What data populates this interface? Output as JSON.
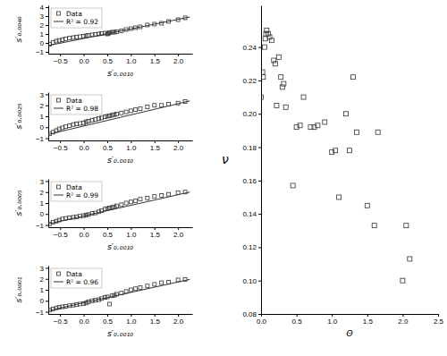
{
  "chart_data": [
    {
      "type": "scatter",
      "xlabel": "s′₀.₀₀₁₀",
      "ylabel": "s′₀.₀₀₄₀",
      "legend": "upper left",
      "grid": false,
      "xlim": [
        -0.75,
        2.3
      ],
      "ylim": [
        -1.2,
        4.2
      ],
      "xticks": [
        {
          "value": -0.5,
          "label": "−0.5"
        },
        {
          "value": 0,
          "label": "0.0"
        },
        0.5,
        {
          "value": 1.0,
          "label": "1.0"
        },
        1.5,
        {
          "value": 2.0,
          "label": "2.0"
        }
      ],
      "yticks": [
        {
          "value": -1,
          "label": "−1"
        },
        0,
        1,
        2,
        3,
        4
      ],
      "series": [
        {
          "name": "Data",
          "type": "scatter",
          "marker": "square",
          "color": "#333333",
          "x": [
            -0.72,
            -0.65,
            -0.58,
            -0.52,
            -0.45,
            -0.38,
            -0.3,
            -0.22,
            -0.15,
            -0.08,
            0.0,
            0.05,
            0.1,
            0.18,
            0.25,
            0.32,
            0.38,
            0.45,
            0.5,
            0.52,
            0.55,
            0.6,
            0.65,
            0.7,
            0.8,
            0.9,
            1.0,
            1.1,
            1.2,
            1.35,
            1.5,
            1.65,
            1.8,
            2.0,
            2.15
          ],
          "values": [
            -0.15,
            0.05,
            0.2,
            0.28,
            0.35,
            0.45,
            0.55,
            0.6,
            0.65,
            0.7,
            0.75,
            0.8,
            0.85,
            0.9,
            0.95,
            1.0,
            1.05,
            1.1,
            1.0,
            1.05,
            1.15,
            1.2,
            1.2,
            1.25,
            1.35,
            1.5,
            1.6,
            1.7,
            1.8,
            2.0,
            2.1,
            2.2,
            2.4,
            2.6,
            2.8
          ]
        },
        {
          "name": "R² = 0.92",
          "type": "line",
          "line_style": "solid",
          "color": "#333333",
          "x": [
            -0.75,
            2.25
          ],
          "values": [
            -0.3,
            2.9
          ]
        }
      ]
    },
    {
      "type": "scatter",
      "xlabel": "s′₀.₀₀₁₀",
      "ylabel": "s′₀.₀₀₂₅",
      "legend": "upper left",
      "grid": false,
      "xlim": [
        -0.75,
        2.3
      ],
      "ylim": [
        -1.2,
        3.2
      ],
      "xticks": [
        {
          "value": -0.5,
          "label": "−0.5"
        },
        {
          "value": 0,
          "label": "0.0"
        },
        0.5,
        {
          "value": 1.0,
          "label": "1.0"
        },
        1.5,
        {
          "value": 2.0,
          "label": "2.0"
        }
      ],
      "yticks": [
        {
          "value": -1,
          "label": "−1"
        },
        0,
        1,
        2,
        3
      ],
      "series": [
        {
          "name": "Data",
          "type": "scatter",
          "marker": "square",
          "color": "#333333",
          "x": [
            -0.72,
            -0.65,
            -0.58,
            -0.52,
            -0.45,
            -0.38,
            -0.3,
            -0.22,
            -0.15,
            -0.08,
            0.0,
            0.05,
            0.1,
            0.18,
            0.25,
            0.32,
            0.38,
            0.45,
            0.5,
            0.55,
            0.6,
            0.65,
            0.7,
            0.8,
            0.9,
            1.0,
            1.1,
            1.2,
            1.35,
            1.5,
            1.65,
            1.8,
            2.0,
            2.15
          ],
          "values": [
            -0.6,
            -0.45,
            -0.3,
            -0.15,
            -0.05,
            0.05,
            0.15,
            0.25,
            0.3,
            0.35,
            0.4,
            0.5,
            0.55,
            0.65,
            0.7,
            0.8,
            0.85,
            0.95,
            1.0,
            1.05,
            1.1,
            1.15,
            1.2,
            1.3,
            1.4,
            1.5,
            1.6,
            1.7,
            1.85,
            2.0,
            2.0,
            2.1,
            2.2,
            2.35
          ]
        },
        {
          "name": "R² = 0.98",
          "type": "line",
          "line_style": "solid",
          "color": "#333333",
          "x": [
            -0.75,
            2.25
          ],
          "values": [
            -0.65,
            2.4
          ]
        }
      ]
    },
    {
      "type": "scatter",
      "xlabel": "s′₀.₀₀₁₀",
      "ylabel": "s′₀.₀₀₀₅",
      "legend": "upper left",
      "grid": false,
      "xlim": [
        -0.75,
        2.3
      ],
      "ylim": [
        -1.2,
        3.2
      ],
      "xticks": [
        {
          "value": -0.5,
          "label": "−0.5"
        },
        {
          "value": 0,
          "label": "0.0"
        },
        0.5,
        {
          "value": 1.0,
          "label": "1.0"
        },
        1.5,
        {
          "value": 2.0,
          "label": "2.0"
        }
      ],
      "yticks": [
        {
          "value": -1,
          "label": "−1"
        },
        0,
        1,
        2,
        3
      ],
      "series": [
        {
          "name": "Data",
          "type": "scatter",
          "marker": "square",
          "color": "#333333",
          "x": [
            -0.72,
            -0.65,
            -0.58,
            -0.52,
            -0.45,
            -0.38,
            -0.3,
            -0.22,
            -0.15,
            -0.08,
            0.0,
            0.05,
            0.1,
            0.18,
            0.25,
            0.32,
            0.38,
            0.45,
            0.5,
            0.55,
            0.6,
            0.65,
            0.7,
            0.8,
            0.9,
            1.0,
            1.1,
            1.2,
            1.35,
            1.5,
            1.65,
            1.8,
            2.0,
            2.15
          ],
          "values": [
            -0.9,
            -0.75,
            -0.65,
            -0.55,
            -0.45,
            -0.4,
            -0.35,
            -0.3,
            -0.25,
            -0.2,
            -0.15,
            -0.1,
            -0.05,
            0.05,
            0.1,
            0.2,
            0.3,
            0.45,
            0.5,
            0.55,
            0.6,
            0.65,
            0.75,
            0.85,
            1.0,
            1.1,
            1.2,
            1.35,
            1.45,
            1.6,
            1.7,
            1.8,
            1.95,
            2.0
          ]
        },
        {
          "name": "R² = 0.99",
          "type": "line",
          "line_style": "solid",
          "color": "#333333",
          "x": [
            -0.75,
            2.25
          ],
          "values": [
            -0.9,
            2.0
          ]
        }
      ]
    },
    {
      "type": "scatter",
      "xlabel": "s′₀.₀₀₁₀",
      "ylabel": "s′₀.₀₀₀₁",
      "legend": "upper left",
      "grid": false,
      "xlim": [
        -0.75,
        2.3
      ],
      "ylim": [
        -1.2,
        3.2
      ],
      "xticks": [
        {
          "value": -0.5,
          "label": "−0.5"
        },
        {
          "value": 0,
          "label": "0.0"
        },
        0.5,
        {
          "value": 1.0,
          "label": "1.0"
        },
        1.5,
        {
          "value": 2.0,
          "label": "2.0"
        }
      ],
      "yticks": [
        {
          "value": -1,
          "label": "−1"
        },
        0,
        1,
        2,
        3
      ],
      "series": [
        {
          "name": "Data",
          "type": "scatter",
          "marker": "square",
          "color": "#333333",
          "x": [
            -0.72,
            -0.65,
            -0.58,
            -0.52,
            -0.45,
            -0.38,
            -0.3,
            -0.22,
            -0.15,
            -0.08,
            0.0,
            0.05,
            0.1,
            0.18,
            0.25,
            0.32,
            0.38,
            0.45,
            0.5,
            0.55,
            0.6,
            0.65,
            0.7,
            0.8,
            0.9,
            1.0,
            1.1,
            1.2,
            1.35,
            1.5,
            1.65,
            1.8,
            2.0,
            2.15
          ],
          "values": [
            -0.85,
            -0.75,
            -0.65,
            -0.6,
            -0.55,
            -0.5,
            -0.45,
            -0.4,
            -0.35,
            -0.3,
            -0.25,
            -0.2,
            -0.1,
            0.0,
            0.05,
            0.1,
            0.2,
            0.3,
            0.35,
            -0.3,
            0.45,
            0.5,
            0.6,
            0.7,
            0.85,
            1.0,
            1.1,
            1.2,
            1.35,
            1.5,
            1.65,
            1.7,
            1.9,
            1.95
          ]
        },
        {
          "name": "R² = 0.96",
          "type": "line",
          "line_style": "solid",
          "color": "#333333",
          "x": [
            -0.75,
            2.25
          ],
          "values": [
            -0.9,
            1.95
          ]
        }
      ]
    },
    {
      "type": "scatter",
      "xlabel": "Θ",
      "ylabel": "ν",
      "grid": false,
      "xlim": [
        0,
        2.5
      ],
      "ylim": [
        0.08,
        0.265
      ],
      "xticks": [
        {
          "value": 0,
          "label": "0.0"
        },
        0.5,
        {
          "value": 1.0,
          "label": "1.0"
        },
        1.5,
        {
          "value": 2.0,
          "label": "2.0"
        },
        2.5
      ],
      "yticks": [
        0.08,
        {
          "value": 0.1,
          "label": "0.10"
        },
        0.12,
        0.14,
        0.16,
        0.18,
        {
          "value": 0.2,
          "label": "0.20"
        },
        0.22,
        0.24
      ],
      "series": [
        {
          "type": "scatter",
          "marker": "square",
          "color": "#333333",
          "x": [
            0.0,
            0.02,
            0.03,
            0.05,
            0.06,
            0.07,
            0.08,
            0.1,
            0.12,
            0.15,
            0.18,
            0.2,
            0.22,
            0.25,
            0.28,
            0.3,
            0.32,
            0.35,
            0.45,
            0.5,
            0.55,
            0.6,
            0.7,
            0.75,
            0.8,
            0.9,
            1.0,
            1.05,
            1.1,
            1.2,
            1.25,
            1.3,
            1.35,
            1.5,
            1.6,
            1.65,
            2.0,
            2.05,
            2.1
          ],
          "values": [
            0.21,
            0.225,
            0.222,
            0.24,
            0.245,
            0.248,
            0.25,
            0.248,
            0.246,
            0.244,
            0.232,
            0.23,
            0.205,
            0.234,
            0.222,
            0.216,
            0.218,
            0.204,
            0.157,
            0.192,
            0.193,
            0.21,
            0.192,
            0.192,
            0.193,
            0.195,
            0.177,
            0.178,
            0.15,
            0.2,
            0.178,
            0.222,
            0.189,
            0.145,
            0.133,
            0.189,
            0.1,
            0.133,
            0.113
          ]
        }
      ]
    }
  ]
}
